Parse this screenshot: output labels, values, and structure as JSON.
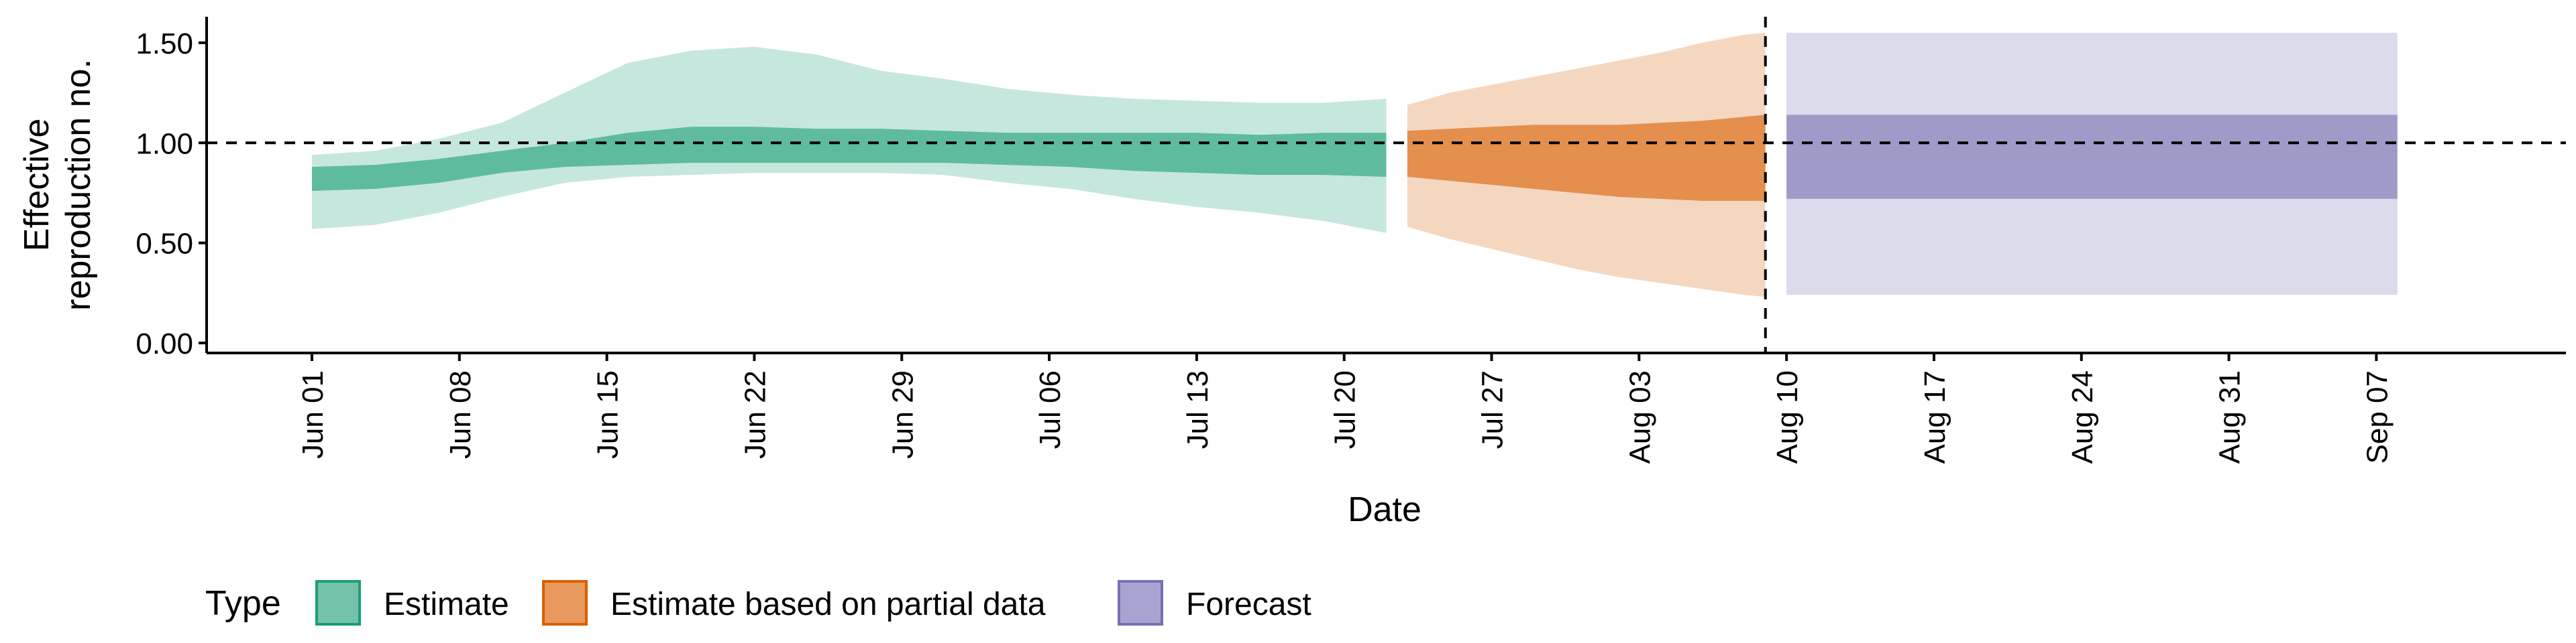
{
  "chart_data": {
    "type": "area",
    "title": "",
    "xlabel": "Date",
    "ylabel_lines": [
      "Effective",
      "reproduction no."
    ],
    "x_start": "2020-05-27",
    "x_end": "2020-09-16",
    "ylim": [
      -0.05,
      1.63
    ],
    "y_ticks": [
      0,
      0.5,
      1,
      1.5
    ],
    "y_tick_labels": [
      "0.00",
      "0.50",
      "1.00",
      "1.50"
    ],
    "x_ticks": [
      {
        "date": "2020-06-01",
        "label": "Jun 01"
      },
      {
        "date": "2020-06-08",
        "label": "Jun 08"
      },
      {
        "date": "2020-06-15",
        "label": "Jun 15"
      },
      {
        "date": "2020-06-22",
        "label": "Jun 22"
      },
      {
        "date": "2020-06-29",
        "label": "Jun 29"
      },
      {
        "date": "2020-07-06",
        "label": "Jul 06"
      },
      {
        "date": "2020-07-13",
        "label": "Jul 13"
      },
      {
        "date": "2020-07-20",
        "label": "Jul 20"
      },
      {
        "date": "2020-07-27",
        "label": "Jul 27"
      },
      {
        "date": "2020-08-03",
        "label": "Aug 03"
      },
      {
        "date": "2020-08-10",
        "label": "Aug 10"
      },
      {
        "date": "2020-08-17",
        "label": "Aug 17"
      },
      {
        "date": "2020-08-24",
        "label": "Aug 24"
      },
      {
        "date": "2020-08-31",
        "label": "Aug 31"
      },
      {
        "date": "2020-09-07",
        "label": "Sep 07"
      }
    ],
    "reference_line_y": 1.0,
    "forecast_start_line": "2020-08-09",
    "series": [
      {
        "name": "Estimate",
        "color": "#1b9e77",
        "outer_alpha": 0.25,
        "inner_alpha": 0.6,
        "x": [
          "2020-06-01",
          "2020-06-04",
          "2020-06-07",
          "2020-06-10",
          "2020-06-13",
          "2020-06-16",
          "2020-06-19",
          "2020-06-22",
          "2020-06-25",
          "2020-06-28",
          "2020-07-01",
          "2020-07-04",
          "2020-07-07",
          "2020-07-10",
          "2020-07-13",
          "2020-07-16",
          "2020-07-19",
          "2020-07-22"
        ],
        "outer_lower": [
          0.57,
          0.59,
          0.65,
          0.73,
          0.8,
          0.83,
          0.84,
          0.85,
          0.85,
          0.85,
          0.84,
          0.8,
          0.77,
          0.72,
          0.68,
          0.65,
          0.61,
          0.55
        ],
        "outer_upper": [
          0.94,
          0.96,
          1.02,
          1.1,
          1.25,
          1.4,
          1.46,
          1.48,
          1.44,
          1.36,
          1.32,
          1.27,
          1.24,
          1.22,
          1.21,
          1.2,
          1.2,
          1.22
        ],
        "inner_lower": [
          0.76,
          0.77,
          0.8,
          0.85,
          0.88,
          0.89,
          0.9,
          0.9,
          0.9,
          0.9,
          0.9,
          0.89,
          0.88,
          0.86,
          0.85,
          0.84,
          0.84,
          0.83
        ],
        "inner_upper": [
          0.88,
          0.89,
          0.92,
          0.96,
          1.0,
          1.05,
          1.08,
          1.08,
          1.07,
          1.07,
          1.06,
          1.05,
          1.05,
          1.05,
          1.05,
          1.04,
          1.05,
          1.05
        ]
      },
      {
        "name": "Estimate based on partial data",
        "color": "#d95f02",
        "outer_alpha": 0.25,
        "inner_alpha": 0.6,
        "x": [
          "2020-07-23",
          "2020-07-25",
          "2020-07-27",
          "2020-07-29",
          "2020-07-31",
          "2020-08-02",
          "2020-08-04",
          "2020-08-06",
          "2020-08-08",
          "2020-08-09"
        ],
        "outer_lower": [
          0.58,
          0.52,
          0.47,
          0.42,
          0.37,
          0.33,
          0.3,
          0.27,
          0.24,
          0.23
        ],
        "outer_upper": [
          1.19,
          1.25,
          1.29,
          1.33,
          1.37,
          1.41,
          1.45,
          1.5,
          1.54,
          1.55
        ],
        "inner_lower": [
          0.83,
          0.81,
          0.79,
          0.77,
          0.75,
          0.73,
          0.72,
          0.71,
          0.71,
          0.71
        ],
        "inner_upper": [
          1.06,
          1.07,
          1.08,
          1.09,
          1.09,
          1.09,
          1.1,
          1.11,
          1.13,
          1.14
        ]
      },
      {
        "name": "Forecast",
        "color": "#7570b3",
        "outer_alpha": 0.25,
        "inner_alpha": 0.6,
        "x": [
          "2020-08-10",
          "2020-09-08"
        ],
        "outer_lower": [
          0.24,
          0.24
        ],
        "outer_upper": [
          1.55,
          1.55
        ],
        "inner_lower": [
          0.72,
          0.72
        ],
        "inner_upper": [
          1.14,
          1.14
        ]
      }
    ],
    "legend": {
      "position": "bottom-left",
      "title": "Type",
      "items": [
        {
          "label": "Estimate",
          "fill": "#74c2a9",
          "stroke": "#1b9e77"
        },
        {
          "label": "Estimate based on partial data",
          "fill": "#e89a5e",
          "stroke": "#d95f02"
        },
        {
          "label": "Forecast",
          "fill": "#a7a4d2",
          "stroke": "#7570b3"
        }
      ]
    }
  }
}
